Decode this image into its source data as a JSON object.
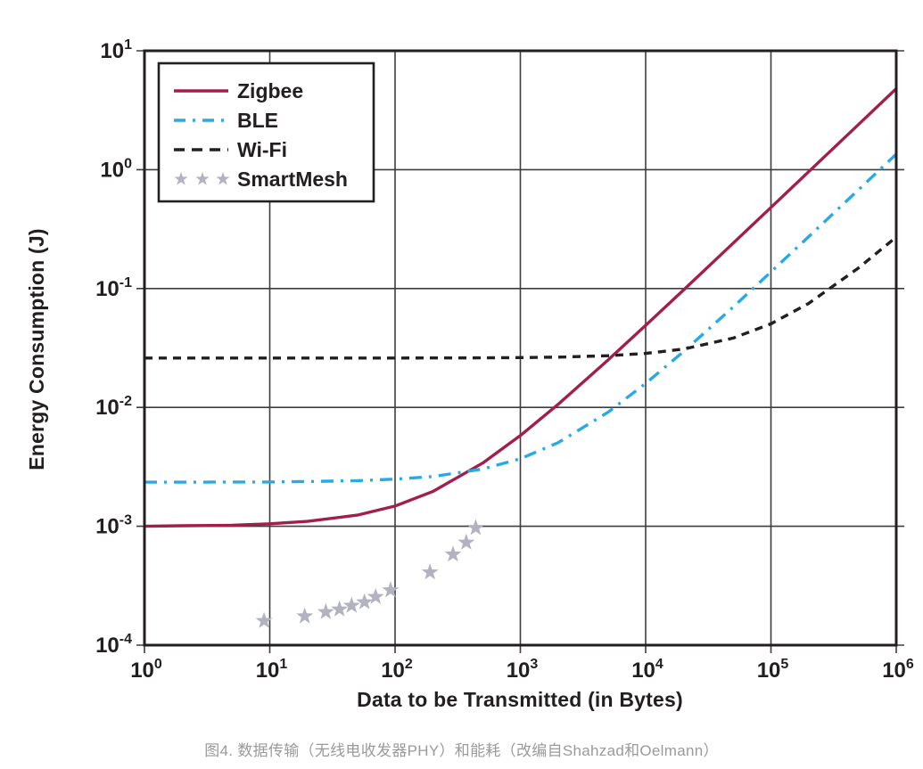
{
  "caption": {
    "text": "图4. 数据传输（无线电收发器PHY）和能耗（改编自Shahzad和Oelmann）"
  },
  "chart_data": {
    "type": "line",
    "title": "",
    "xlabel": "Data to be Transmitted (in Bytes)",
    "ylabel": "Energy Consumption (J)",
    "x_scale": "log",
    "y_scale": "log",
    "xlim": [
      1,
      1000000
    ],
    "ylim": [
      0.0001,
      10
    ],
    "x_tick_exponents": [
      0,
      1,
      2,
      3,
      4,
      5,
      6
    ],
    "y_tick_exponents": [
      1,
      0,
      -1,
      -2,
      -3,
      -4
    ],
    "grid": true,
    "legend_position": "top-left",
    "frame_color": "#231f20",
    "grid_color": "#3d3d3d",
    "series": [
      {
        "name": "Zigbee",
        "style": "solid",
        "color": "#a21e4d",
        "x": [
          1,
          2,
          5,
          10,
          20,
          50,
          100,
          200,
          500,
          1000,
          2000,
          5000,
          10000,
          20000,
          50000,
          100000,
          200000,
          500000,
          1000000
        ],
        "y": [
          0.001,
          0.00101,
          0.00102,
          0.00105,
          0.0011,
          0.00124,
          0.00148,
          0.00196,
          0.0034,
          0.0058,
          0.0106,
          0.025,
          0.049,
          0.097,
          0.241,
          0.481,
          0.961,
          2.4,
          4.8
        ]
      },
      {
        "name": "BLE",
        "style": "dash-dot",
        "color": "#29abe2",
        "x": [
          1,
          2,
          5,
          10,
          20,
          50,
          100,
          200,
          500,
          1000,
          2000,
          5000,
          10000,
          20000,
          50000,
          100000,
          200000,
          500000,
          1000000
        ],
        "y": [
          0.00235,
          0.00235,
          0.00236,
          0.00236,
          0.00238,
          0.00242,
          0.00249,
          0.00262,
          0.00303,
          0.0037,
          0.00505,
          0.0091,
          0.0159,
          0.0294,
          0.0699,
          0.138,
          0.273,
          0.678,
          1.35
        ]
      },
      {
        "name": "Wi-Fi",
        "style": "dashed",
        "color": "#231f20",
        "x": [
          1,
          2,
          5,
          10,
          20,
          50,
          100,
          200,
          500,
          1000,
          2000,
          5000,
          10000,
          20000,
          50000,
          100000,
          200000,
          500000,
          1000000
        ],
        "y": [
          0.026,
          0.026,
          0.026,
          0.026,
          0.026,
          0.026,
          0.026,
          0.02605,
          0.02612,
          0.02625,
          0.02649,
          0.02723,
          0.02845,
          0.0309,
          0.0383,
          0.0505,
          0.075,
          0.149,
          0.271
        ]
      },
      {
        "name": "SmartMesh",
        "style": "stars",
        "color": "#b2b2c0",
        "x": [
          9,
          19,
          28,
          36,
          45,
          57,
          70,
          92,
          190,
          290,
          370,
          440
        ],
        "y": [
          0.00016,
          0.000175,
          0.00019,
          0.0002,
          0.000215,
          0.00023,
          0.000255,
          0.00029,
          0.00041,
          0.00058,
          0.00073,
          0.00097
        ]
      }
    ]
  }
}
